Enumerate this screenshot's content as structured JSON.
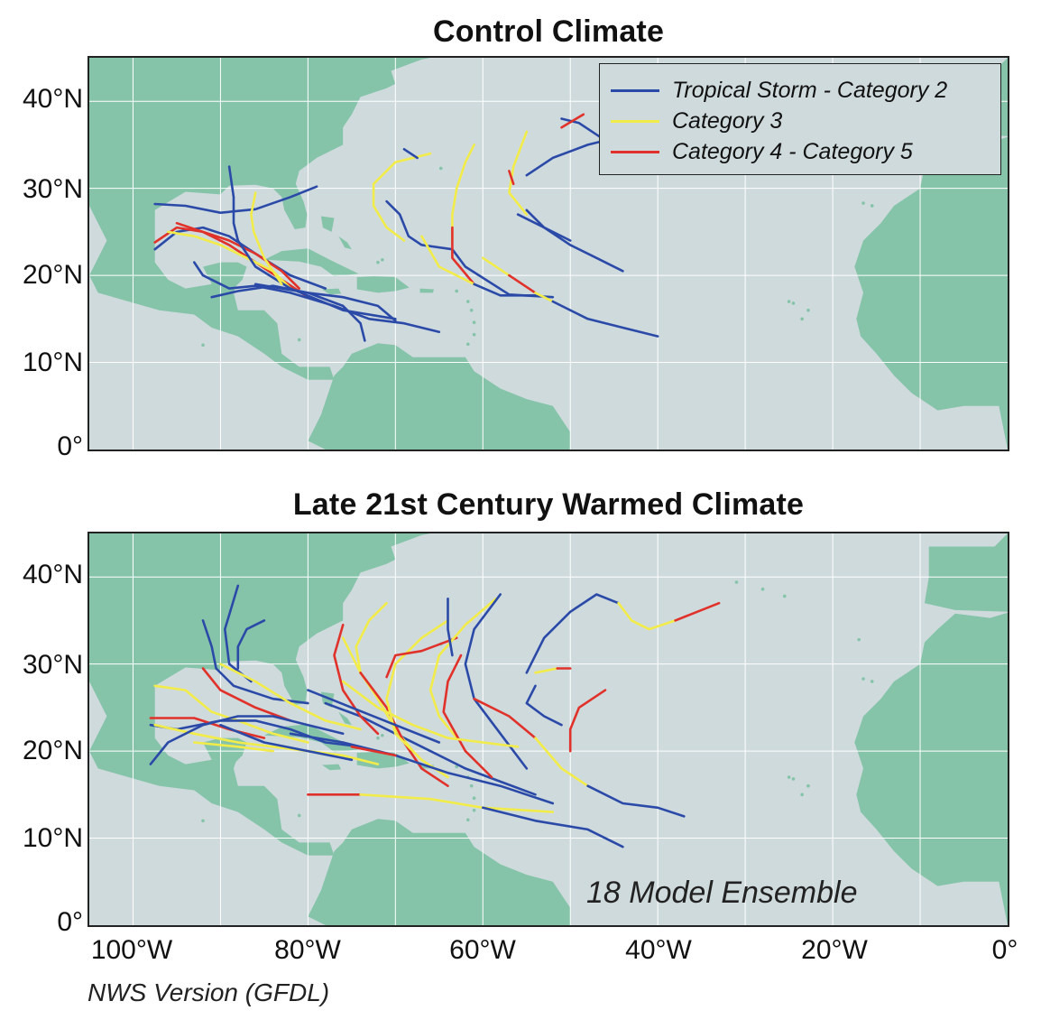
{
  "titles": {
    "control": "Control Climate",
    "warmed": "Late 21st Century Warmed Climate"
  },
  "axes": {
    "y_ticks": [
      "40°N",
      "30°N",
      "20°N",
      "10°N",
      "0°"
    ],
    "x_ticks": [
      "100°W",
      "80°W",
      "60°W",
      "40°W",
      "20°W",
      "0°"
    ],
    "lon_range": [
      -105,
      0
    ],
    "lat_range": [
      0,
      45
    ]
  },
  "legend": {
    "items": [
      {
        "label": "Tropical Storm - Category 2",
        "color": "#2b4aa8"
      },
      {
        "label": "Category 3",
        "color": "#f2ec4a"
      },
      {
        "label": "Category 4 - Category 5",
        "color": "#e0322a"
      }
    ]
  },
  "annotation": "18 Model Ensemble",
  "footer": "NWS Version (GFDL)",
  "colors": {
    "ocean": "#cfdadd",
    "land": "#86c4aa",
    "grid": "#ffffff",
    "track_weak": "#2b4aa8",
    "track_cat3": "#f2ec4a",
    "track_cat45": "#e0322a"
  },
  "tracks_control": [
    {
      "cat": "b",
      "pts": [
        [
          -97.5,
          28.2
        ],
        [
          -94,
          28
        ],
        [
          -90,
          27.2
        ],
        [
          -86,
          27.6
        ],
        [
          -82,
          29
        ],
        [
          -79,
          30.2
        ]
      ]
    },
    {
      "cat": "b",
      "pts": [
        [
          -97.5,
          23
        ],
        [
          -95,
          25
        ],
        [
          -92,
          25.5
        ],
        [
          -89,
          24.5
        ],
        [
          -86,
          22.5
        ],
        [
          -82,
          20
        ],
        [
          -78,
          18.5
        ]
      ]
    },
    {
      "cat": "r",
      "pts": [
        [
          -97.5,
          23.8
        ],
        [
          -95,
          25.5
        ],
        [
          -92,
          25
        ],
        [
          -89,
          23.5
        ],
        [
          -86,
          21.5
        ],
        [
          -83,
          19.5
        ],
        [
          -80,
          17.5
        ]
      ]
    },
    {
      "cat": "y",
      "pts": [
        [
          -96,
          25
        ],
        [
          -93,
          24.5
        ],
        [
          -90,
          23.5
        ],
        [
          -87,
          22
        ],
        [
          -84,
          20.5
        ],
        [
          -82,
          18.5
        ]
      ]
    },
    {
      "cat": "r",
      "pts": [
        [
          -95,
          26
        ],
        [
          -92,
          25
        ],
        [
          -89,
          24
        ],
        [
          -86,
          22.5
        ],
        [
          -83,
          20.5
        ],
        [
          -81,
          18.5
        ]
      ]
    },
    {
      "cat": "b",
      "pts": [
        [
          -89,
          32.5
        ],
        [
          -88.5,
          29
        ],
        [
          -88.5,
          26
        ],
        [
          -88,
          24
        ],
        [
          -86,
          21
        ],
        [
          -82,
          18.5
        ],
        [
          -76,
          16
        ],
        [
          -70,
          15
        ]
      ]
    },
    {
      "cat": "y",
      "pts": [
        [
          -86,
          29.5
        ],
        [
          -86.5,
          27
        ],
        [
          -86.2,
          25
        ],
        [
          -85,
          22
        ],
        [
          -83,
          19
        ]
      ]
    },
    {
      "cat": "b",
      "pts": [
        [
          -93,
          21.5
        ],
        [
          -92,
          20
        ],
        [
          -89,
          18.5
        ],
        [
          -86,
          18.8
        ],
        [
          -82,
          18
        ],
        [
          -77,
          16.5
        ],
        [
          -73,
          15
        ],
        [
          -69,
          14.5
        ],
        [
          -65,
          13.5
        ]
      ]
    },
    {
      "cat": "b",
      "pts": [
        [
          -91,
          17.5
        ],
        [
          -88,
          18.2
        ],
        [
          -84,
          18.8
        ],
        [
          -80,
          18
        ],
        [
          -76,
          17.5
        ],
        [
          -72,
          16.5
        ],
        [
          -70,
          14.8
        ]
      ]
    },
    {
      "cat": "b",
      "pts": [
        [
          -86,
          19
        ],
        [
          -80,
          18
        ],
        [
          -76,
          16.5
        ],
        [
          -74,
          14.5
        ],
        [
          -73.5,
          12.5
        ]
      ]
    },
    {
      "cat": "y",
      "pts": [
        [
          -66,
          34
        ],
        [
          -70,
          33
        ],
        [
          -72.5,
          30.5
        ],
        [
          -72.5,
          28
        ],
        [
          -71,
          25.5
        ],
        [
          -69,
          24
        ]
      ]
    },
    {
      "cat": "b",
      "pts": [
        [
          -69,
          34.5
        ],
        [
          -67.5,
          33.5
        ]
      ]
    },
    {
      "cat": "b",
      "pts": [
        [
          -71,
          28.5
        ],
        [
          -69.5,
          27
        ],
        [
          -68.5,
          24.5
        ],
        [
          -67,
          23.5
        ],
        [
          -63.5,
          23
        ],
        [
          -62,
          21
        ],
        [
          -57,
          17.8
        ],
        [
          -52,
          17.5
        ]
      ]
    },
    {
      "cat": "y",
      "pts": [
        [
          -61,
          35
        ],
        [
          -62,
          33
        ],
        [
          -63,
          30
        ],
        [
          -63.5,
          27
        ],
        [
          -63.5,
          24
        ]
      ]
    },
    {
      "cat": "r",
      "pts": [
        [
          -63.5,
          25.5
        ],
        [
          -63.5,
          22
        ],
        [
          -61,
          19
        ]
      ]
    },
    {
      "cat": "y",
      "pts": [
        [
          -67,
          24.5
        ],
        [
          -65,
          21
        ],
        [
          -61,
          19
        ]
      ]
    },
    {
      "cat": "b",
      "pts": [
        [
          -61,
          19
        ],
        [
          -58,
          17.7
        ],
        [
          -54,
          17.7
        ]
      ]
    },
    {
      "cat": "y",
      "pts": [
        [
          -55,
          36.5
        ],
        [
          -56.5,
          32.5
        ],
        [
          -57,
          29.5
        ],
        [
          -55,
          27
        ]
      ]
    },
    {
      "cat": "r",
      "pts": [
        [
          -57,
          32
        ],
        [
          -56.5,
          30.5
        ]
      ]
    },
    {
      "cat": "b",
      "pts": [
        [
          -55,
          31.5
        ],
        [
          -52,
          33.5
        ],
        [
          -48,
          35
        ],
        [
          -46,
          35.5
        ],
        [
          -49,
          37.5
        ],
        [
          -51,
          38
        ]
      ]
    },
    {
      "cat": "r",
      "pts": [
        [
          -51,
          37
        ],
        [
          -48.5,
          38.5
        ]
      ]
    },
    {
      "cat": "b",
      "pts": [
        [
          -55,
          27.5
        ],
        [
          -53,
          25.5
        ],
        [
          -50,
          23.5
        ],
        [
          -47,
          22
        ],
        [
          -44,
          20.5
        ]
      ]
    },
    {
      "cat": "b",
      "pts": [
        [
          -56,
          27
        ],
        [
          -50,
          24
        ]
      ]
    },
    {
      "cat": "y",
      "pts": [
        [
          -60,
          22
        ],
        [
          -57,
          20
        ]
      ]
    },
    {
      "cat": "r",
      "pts": [
        [
          -57,
          20
        ],
        [
          -54,
          18
        ]
      ]
    },
    {
      "cat": "y",
      "pts": [
        [
          -54,
          18
        ],
        [
          -52,
          17
        ]
      ]
    },
    {
      "cat": "b",
      "pts": [
        [
          -52,
          17
        ],
        [
          -48,
          15
        ],
        [
          -44,
          14
        ],
        [
          -40,
          13
        ]
      ]
    }
  ],
  "tracks_warmed": [
    {
      "cat": "b",
      "pts": [
        [
          -92,
          35
        ],
        [
          -91,
          32
        ],
        [
          -90.5,
          29.5
        ],
        [
          -88.5,
          27.5
        ],
        [
          -84,
          26
        ],
        [
          -80,
          25.5
        ]
      ]
    },
    {
      "cat": "b",
      "pts": [
        [
          -88,
          39
        ],
        [
          -89.5,
          34
        ],
        [
          -89,
          30
        ],
        [
          -86.5,
          28
        ]
      ]
    },
    {
      "cat": "b",
      "pts": [
        [
          -85,
          35
        ],
        [
          -87,
          34
        ],
        [
          -88,
          32
        ],
        [
          -88,
          29.5
        ]
      ]
    },
    {
      "cat": "y",
      "pts": [
        [
          -90,
          30
        ],
        [
          -86,
          28
        ],
        [
          -82,
          25.5
        ],
        [
          -78,
          23.5
        ],
        [
          -74,
          22.5
        ]
      ]
    },
    {
      "cat": "r",
      "pts": [
        [
          -92,
          29.5
        ],
        [
          -90,
          27
        ],
        [
          -86,
          25
        ],
        [
          -82,
          23.5
        ]
      ]
    },
    {
      "cat": "y",
      "pts": [
        [
          -97.5,
          27.5
        ],
        [
          -94,
          27
        ],
        [
          -91,
          24.5
        ],
        [
          -88,
          23.5
        ],
        [
          -84,
          22
        ],
        [
          -80,
          21
        ]
      ]
    },
    {
      "cat": "b",
      "pts": [
        [
          -98,
          23
        ],
        [
          -95,
          22.5
        ],
        [
          -90,
          23.5
        ],
        [
          -86,
          23.5
        ],
        [
          -82,
          22.5
        ],
        [
          -78,
          21
        ],
        [
          -74,
          20.5
        ]
      ]
    },
    {
      "cat": "r",
      "pts": [
        [
          -98,
          23.8
        ],
        [
          -93,
          23.8
        ],
        [
          -89,
          22.5
        ],
        [
          -85,
          21.5
        ]
      ]
    },
    {
      "cat": "y",
      "pts": [
        [
          -97.5,
          23
        ],
        [
          -93,
          22
        ],
        [
          -88,
          21
        ],
        [
          -84,
          20.5
        ],
        [
          -80,
          20
        ],
        [
          -76,
          19.5
        ],
        [
          -72,
          18.5
        ]
      ]
    },
    {
      "cat": "b",
      "pts": [
        [
          -98,
          18.5
        ],
        [
          -96,
          21
        ],
        [
          -92,
          23
        ],
        [
          -88,
          24
        ],
        [
          -84,
          24
        ],
        [
          -80,
          23
        ],
        [
          -76,
          22
        ]
      ]
    },
    {
      "cat": "b",
      "pts": [
        [
          -90,
          23
        ],
        [
          -85,
          21
        ],
        [
          -80,
          20
        ],
        [
          -75,
          19
        ]
      ]
    },
    {
      "cat": "y",
      "pts": [
        [
          -93,
          21
        ],
        [
          -88,
          20.5
        ],
        [
          -84,
          20
        ]
      ]
    },
    {
      "cat": "r",
      "pts": [
        [
          -80,
          15
        ],
        [
          -74,
          15
        ]
      ]
    },
    {
      "cat": "y",
      "pts": [
        [
          -74,
          15
        ],
        [
          -66,
          14.5
        ],
        [
          -60,
          13.5
        ],
        [
          -52,
          13
        ]
      ]
    },
    {
      "cat": "b",
      "pts": [
        [
          -60,
          13.5
        ],
        [
          -54,
          12
        ],
        [
          -48,
          11
        ],
        [
          -44,
          9
        ]
      ]
    },
    {
      "cat": "b",
      "pts": [
        [
          -78,
          25.5
        ],
        [
          -74,
          24
        ],
        [
          -70,
          22
        ],
        [
          -66,
          20
        ],
        [
          -62,
          18
        ],
        [
          -58,
          16.5
        ],
        [
          -54,
          15
        ]
      ]
    },
    {
      "cat": "y",
      "pts": [
        [
          -76,
          33
        ],
        [
          -74,
          29
        ],
        [
          -72,
          26
        ],
        [
          -70,
          22.5
        ],
        [
          -68,
          20
        ]
      ]
    },
    {
      "cat": "r",
      "pts": [
        [
          -76,
          34.5
        ],
        [
          -77,
          31
        ],
        [
          -76,
          27
        ],
        [
          -74,
          24
        ],
        [
          -72,
          22
        ]
      ]
    },
    {
      "cat": "y",
      "pts": [
        [
          -71,
          37
        ],
        [
          -73,
          35
        ],
        [
          -74.5,
          32
        ],
        [
          -74,
          29
        ]
      ]
    },
    {
      "cat": "r",
      "pts": [
        [
          -74,
          29
        ],
        [
          -71,
          25
        ],
        [
          -69,
          21
        ],
        [
          -67,
          18
        ],
        [
          -64,
          16
        ]
      ]
    },
    {
      "cat": "y",
      "pts": [
        [
          -64,
          35
        ],
        [
          -67,
          33
        ],
        [
          -70,
          30
        ],
        [
          -71,
          26
        ],
        [
          -70,
          22
        ],
        [
          -67,
          19
        ],
        [
          -64,
          17
        ]
      ]
    },
    {
      "cat": "r",
      "pts": [
        [
          -63,
          33
        ],
        [
          -67,
          31.5
        ],
        [
          -70,
          31
        ],
        [
          -71,
          28.5
        ]
      ]
    },
    {
      "cat": "y",
      "pts": [
        [
          -58.5,
          37.5
        ],
        [
          -62,
          34.5
        ],
        [
          -65,
          31
        ],
        [
          -66,
          27
        ],
        [
          -65,
          24
        ],
        [
          -63,
          21.5
        ]
      ]
    },
    {
      "cat": "b",
      "pts": [
        [
          -64,
          37.5
        ],
        [
          -64,
          34
        ],
        [
          -63.5,
          31
        ]
      ]
    },
    {
      "cat": "r",
      "pts": [
        [
          -62.5,
          31
        ],
        [
          -64,
          28
        ],
        [
          -64.5,
          24.5
        ],
        [
          -62,
          20
        ],
        [
          -59,
          17
        ]
      ]
    },
    {
      "cat": "b",
      "pts": [
        [
          -58,
          38
        ],
        [
          -61,
          34
        ],
        [
          -62,
          30
        ],
        [
          -61,
          26
        ],
        [
          -58,
          22
        ],
        [
          -55,
          18
        ]
      ]
    },
    {
      "cat": "r",
      "pts": [
        [
          -61,
          26
        ],
        [
          -57,
          24
        ],
        [
          -54,
          21.5
        ]
      ]
    },
    {
      "cat": "y",
      "pts": [
        [
          -54,
          21.5
        ],
        [
          -51,
          18
        ],
        [
          -48,
          16
        ]
      ]
    },
    {
      "cat": "b",
      "pts": [
        [
          -48,
          16
        ],
        [
          -44,
          14
        ],
        [
          -40,
          13.5
        ],
        [
          -37,
          12.5
        ]
      ]
    },
    {
      "cat": "y",
      "pts": [
        [
          -76,
          28
        ],
        [
          -72,
          25
        ],
        [
          -68,
          23
        ],
        [
          -64,
          21.5
        ],
        [
          -60,
          21
        ],
        [
          -56,
          20.5
        ]
      ]
    },
    {
      "cat": "b",
      "pts": [
        [
          -80,
          27
        ],
        [
          -75,
          25
        ],
        [
          -70,
          23
        ],
        [
          -65,
          21
        ]
      ]
    },
    {
      "cat": "b",
      "pts": [
        [
          -82,
          22
        ],
        [
          -76,
          21
        ],
        [
          -70,
          19.5
        ],
        [
          -64,
          17.5
        ],
        [
          -58,
          16
        ],
        [
          -52,
          14
        ]
      ]
    },
    {
      "cat": "r",
      "pts": [
        [
          -75,
          20.5
        ],
        [
          -70,
          19.5
        ]
      ]
    },
    {
      "cat": "b",
      "pts": [
        [
          -55,
          29
        ],
        [
          -53,
          33
        ],
        [
          -50,
          36
        ],
        [
          -47,
          38
        ],
        [
          -44.5,
          37
        ]
      ]
    },
    {
      "cat": "y",
      "pts": [
        [
          -44.5,
          37
        ],
        [
          -43,
          35
        ],
        [
          -41,
          34
        ],
        [
          -38,
          35
        ]
      ]
    },
    {
      "cat": "r",
      "pts": [
        [
          -38,
          35
        ],
        [
          -33,
          37
        ]
      ]
    },
    {
      "cat": "b",
      "pts": [
        [
          -54,
          27.5
        ],
        [
          -55,
          25.5
        ],
        [
          -53,
          24
        ],
        [
          -51,
          23
        ]
      ]
    },
    {
      "cat": "y",
      "pts": [
        [
          -54,
          29
        ],
        [
          -51.5,
          29.5
        ]
      ]
    },
    {
      "cat": "r",
      "pts": [
        [
          -51.5,
          29.5
        ],
        [
          -50,
          29.5
        ]
      ]
    },
    {
      "cat": "r",
      "pts": [
        [
          -46,
          27
        ],
        [
          -49,
          25
        ],
        [
          -50,
          22.5
        ],
        [
          -50,
          20
        ]
      ]
    }
  ]
}
